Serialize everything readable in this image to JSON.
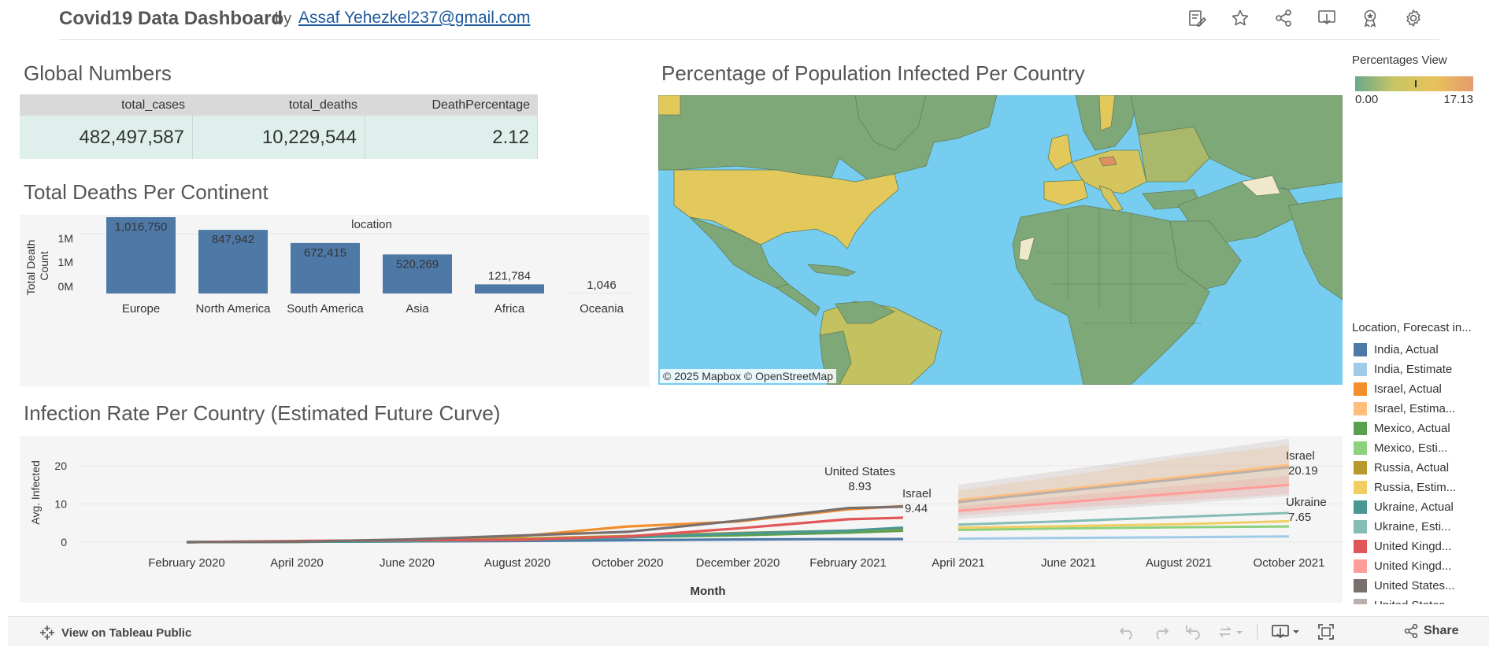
{
  "header": {
    "title": "Covid19 Data Dashboard",
    "by": "by",
    "author": "Assaf Yehezkel237@gmail.com",
    "icons": [
      "edit-icon",
      "star-icon",
      "share-icon",
      "download-icon",
      "award-icon",
      "settings-icon"
    ]
  },
  "global_numbers": {
    "title": "Global Numbers",
    "columns": [
      "total_cases",
      "total_deaths",
      "DeathPercentage"
    ],
    "values": [
      "482,497,587",
      "10,229,544",
      "2.12"
    ]
  },
  "deaths_continent": {
    "title": "Total Deaths Per Continent"
  },
  "map": {
    "title": "Percentage of Population Infected Per Country",
    "attribution": "© 2025 Mapbox  © OpenStreetMap",
    "water_color": "#76cdf0"
  },
  "percent_legend": {
    "title": "Percentages View",
    "min": "0.00",
    "max": "17.13"
  },
  "series_legend": {
    "title": "Location, Forecast in...",
    "items": [
      {
        "label": "India, Actual",
        "color": "#4e79a7"
      },
      {
        "label": "India, Estimate",
        "color": "#a0cbe8"
      },
      {
        "label": "Israel, Actual",
        "color": "#f28e2b"
      },
      {
        "label": "Israel, Estima...",
        "color": "#ffbe7d"
      },
      {
        "label": "Mexico, Actual",
        "color": "#59a14f"
      },
      {
        "label": "Mexico, Esti...",
        "color": "#8cd17d"
      },
      {
        "label": "Russia, Actual",
        "color": "#b6992d"
      },
      {
        "label": "Russia, Estim...",
        "color": "#f1ce63"
      },
      {
        "label": "Ukraine, Actual",
        "color": "#499894"
      },
      {
        "label": "Ukraine, Esti...",
        "color": "#86bcb6"
      },
      {
        "label": "United Kingd...",
        "color": "#e15759"
      },
      {
        "label": "United Kingd...",
        "color": "#ff9d9a"
      },
      {
        "label": "United States...",
        "color": "#79706e"
      },
      {
        "label": "United States...",
        "color": "#bab0ac"
      }
    ]
  },
  "infection_rate": {
    "title": "Infection Rate Per Country (Estimated Future Curve)"
  },
  "footer": {
    "view_label": "View on Tableau Public",
    "share_label": "Share"
  },
  "chart_data": [
    {
      "type": "bar",
      "title": "Total Deaths Per Continent",
      "column_header": "location",
      "ylabel": "Total Death Count",
      "yticks": [
        "1M",
        "1M",
        "0M"
      ],
      "categories": [
        "Europe",
        "North America",
        "South America",
        "Asia",
        "Africa",
        "Oceania"
      ],
      "values": [
        1016750,
        847942,
        672415,
        520269,
        121784,
        1046
      ],
      "labels": [
        "1,016,750",
        "847,942",
        "672,415",
        "520,269",
        "121,784",
        "1,046"
      ],
      "ylim": [
        0,
        1016750
      ],
      "color": "#4e79a7"
    },
    {
      "type": "line",
      "title": "Infection Rate Per Country (Estimated Future Curve)",
      "xlabel": "Month",
      "ylabel": "Avg. Infected",
      "ylim": [
        0,
        23
      ],
      "yticks": [
        0,
        10,
        20
      ],
      "xticks": [
        "February 2020",
        "April 2020",
        "June 2020",
        "August 2020",
        "October 2020",
        "December 2020",
        "February 2021",
        "April 2021",
        "June 2021",
        "August 2021",
        "October 2021"
      ],
      "x_actual": [
        "2020-02",
        "2020-04",
        "2020-06",
        "2020-08",
        "2020-10",
        "2020-12",
        "2021-02",
        "2021-03"
      ],
      "x_estimate": [
        "2021-04",
        "2021-06",
        "2021-08",
        "2021-10"
      ],
      "series": [
        {
          "name": "India, Actual",
          "color": "#4e79a7",
          "values": [
            0,
            0.1,
            0.2,
            0.3,
            0.5,
            0.7,
            0.8,
            0.8
          ]
        },
        {
          "name": "India, Estimate",
          "color": "#a0cbe8",
          "values": [
            0.9,
            1.1,
            1.3,
            1.5
          ]
        },
        {
          "name": "Israel, Actual",
          "color": "#f28e2b",
          "values": [
            0,
            0.2,
            0.6,
            1.5,
            4.1,
            5.4,
            8.6,
            9.44
          ]
        },
        {
          "name": "Israel, Estimate",
          "color": "#ffbe7d",
          "values": [
            11.0,
            14.0,
            17.0,
            20.19
          ],
          "band": [
            2.5,
            3.5,
            5.0,
            5.2
          ]
        },
        {
          "name": "Mexico, Actual",
          "color": "#59a14f",
          "values": [
            0,
            0.1,
            0.3,
            0.8,
            1.3,
            1.8,
            2.5,
            3.0
          ]
        },
        {
          "name": "Mexico, Estimate",
          "color": "#8cd17d",
          "values": [
            3.2,
            3.6,
            3.9,
            4.1
          ]
        },
        {
          "name": "Russia, Actual",
          "color": "#b6992d",
          "values": [
            0,
            0.1,
            0.5,
            0.9,
            1.6,
            2.4,
            3.0,
            3.6
          ]
        },
        {
          "name": "Russia, Estimate",
          "color": "#f1ce63",
          "values": [
            3.8,
            4.2,
            4.7,
            5.5
          ]
        },
        {
          "name": "Ukraine, Actual",
          "color": "#499894",
          "values": [
            0,
            0.1,
            0.2,
            0.5,
            1.2,
            2.3,
            3.0,
            3.8
          ]
        },
        {
          "name": "Ukraine, Estimate",
          "color": "#86bcb6",
          "values": [
            4.6,
            5.5,
            6.6,
            7.65
          ]
        },
        {
          "name": "United Kingdom, Actual",
          "color": "#e15759",
          "values": [
            0,
            0.3,
            0.5,
            0.6,
            1.5,
            3.6,
            6.0,
            6.4
          ]
        },
        {
          "name": "United Kingdom, Estimate",
          "color": "#ff9d9a",
          "values": [
            8.2,
            10.5,
            12.8,
            15.0
          ],
          "band": [
            1.2,
            1.6,
            2.0,
            2.4
          ]
        },
        {
          "name": "United States, Actual",
          "color": "#79706e",
          "values": [
            0,
            0.1,
            0.7,
            1.7,
            2.7,
            5.6,
            8.93,
            9.3
          ]
        },
        {
          "name": "United States, Estimate",
          "color": "#bab0ac",
          "values": [
            10.5,
            13.5,
            16.5,
            19.6
          ],
          "band": [
            4.5,
            5.5,
            6.5,
            7.5
          ]
        }
      ],
      "annotations": [
        {
          "name": "United States",
          "value": "8.93"
        },
        {
          "name": "Israel",
          "value": "9.44"
        },
        {
          "name": "Israel",
          "value": "20.19"
        },
        {
          "name": "Ukraine",
          "value": "7.65"
        }
      ]
    }
  ]
}
